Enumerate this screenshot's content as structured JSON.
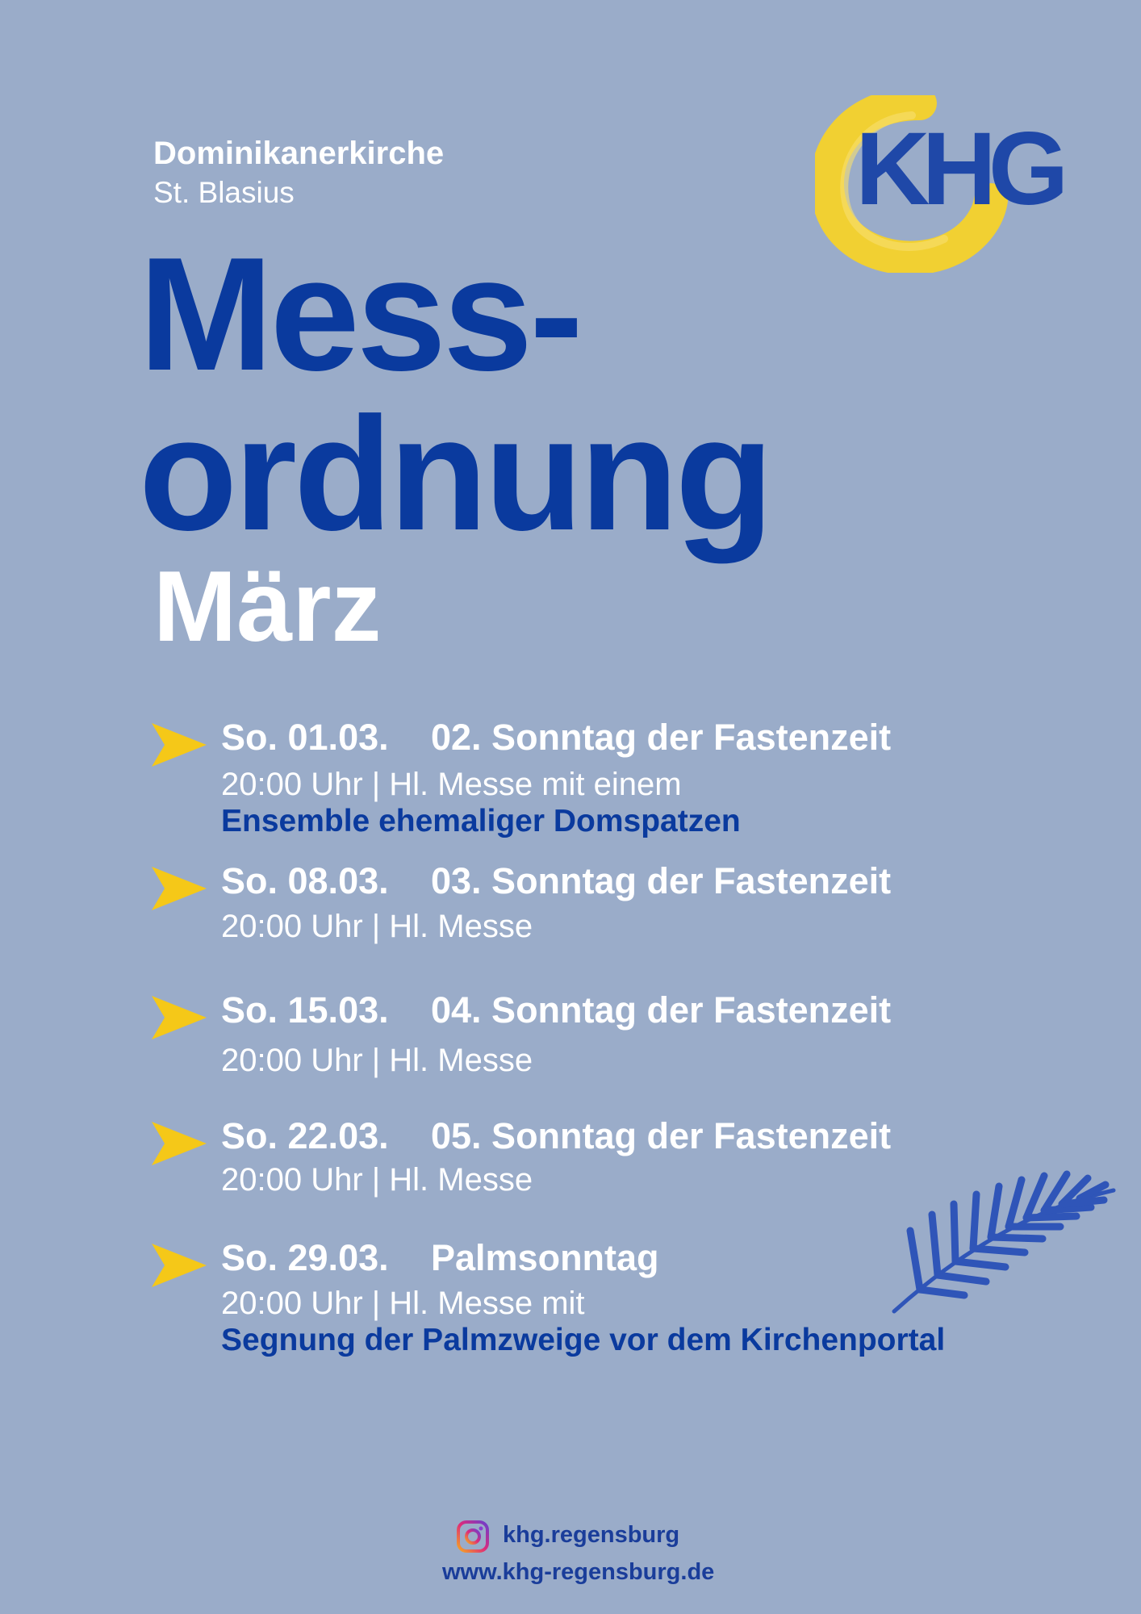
{
  "header": {
    "church_name": "Dominikanerkirche",
    "church_saint": "St. Blasius",
    "title_line1": "Mess-",
    "title_line2": "ordnung",
    "month": "März"
  },
  "logo": {
    "text": "KHG",
    "ring_color": "#f5d22a",
    "text_color": "#1f48a8"
  },
  "colors": {
    "background": "#9aacc9",
    "title": "#0a3a9e",
    "arrow": "#f5c818",
    "highlight": "#0a3a9e"
  },
  "events": [
    {
      "date": "So. 01.03.",
      "name": "02. Sonntag der Fastenzeit",
      "detail": "20:00 Uhr | Hl. Messe mit einem",
      "extra": "Ensemble ehemaliger Domspatzen"
    },
    {
      "date": "So. 08.03.",
      "name": "03. Sonntag der Fastenzeit",
      "detail": "20:00 Uhr | Hl. Messe"
    },
    {
      "date": "So. 15.03.",
      "name": "04. Sonntag der Fastenzeit",
      "detail": "20:00 Uhr | Hl. Messe"
    },
    {
      "date": "So. 22.03.",
      "name": "05. Sonntag der Fastenzeit",
      "detail": "20:00 Uhr | Hl. Messe"
    },
    {
      "date": "So. 29.03.",
      "name": "Palmsonntag",
      "detail": "20:00 Uhr | Hl. Messe mit",
      "extra": "Segnung der Palmzweige vor dem Kirchenportal"
    }
  ],
  "decor": {
    "palm_icon": "palm-leaf-icon"
  },
  "footer": {
    "instagram_icon": "instagram-icon",
    "instagram_handle": "khg.regensburg",
    "website": "www.khg-regensburg.de"
  }
}
